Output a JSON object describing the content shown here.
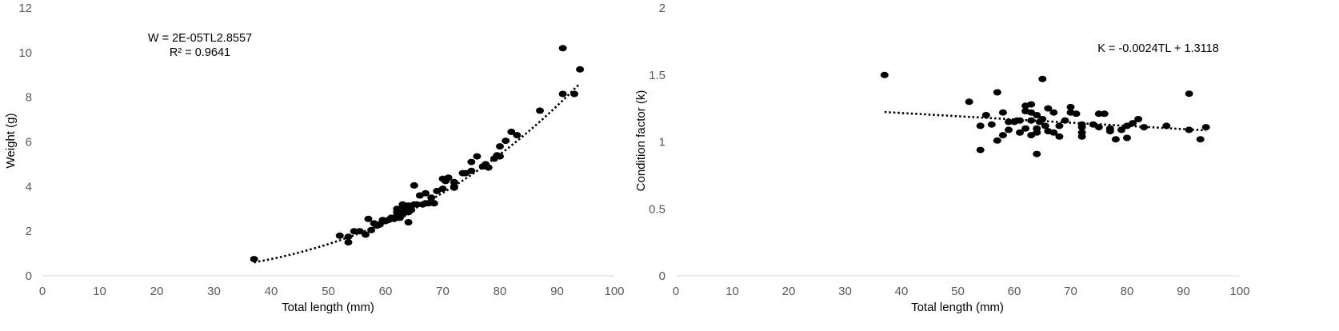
{
  "chart_data": [
    {
      "type": "scatter",
      "xlabel": "Total length (mm)",
      "ylabel": "Weight (g)",
      "xlim": [
        0,
        100
      ],
      "ylim": [
        0,
        12
      ],
      "xticks": [
        0,
        10,
        20,
        30,
        40,
        50,
        60,
        70,
        80,
        90,
        100
      ],
      "yticks": [
        0,
        2,
        4,
        6,
        8,
        10,
        12
      ],
      "grid": false,
      "annotations": [
        "W = 2E-05TL2.8557",
        "R² = 0.9641"
      ],
      "trendline": {
        "type": "power",
        "a": 2e-05,
        "b": 2.8557,
        "x_range": [
          37,
          94
        ],
        "style": "dotted"
      },
      "points": [
        [
          37,
          0.75
        ],
        [
          52,
          1.8
        ],
        [
          53.5,
          1.5
        ],
        [
          53.5,
          1.75
        ],
        [
          54.5,
          2.0
        ],
        [
          55.5,
          2.0
        ],
        [
          56.5,
          1.85
        ],
        [
          57,
          2.55
        ],
        [
          57.5,
          2.05
        ],
        [
          58,
          2.35
        ],
        [
          58.5,
          2.25
        ],
        [
          59,
          2.3
        ],
        [
          59.5,
          2.5
        ],
        [
          60,
          2.45
        ],
        [
          60.5,
          2.5
        ],
        [
          61,
          2.6
        ],
        [
          61.5,
          2.55
        ],
        [
          62,
          2.7
        ],
        [
          62,
          3.0
        ],
        [
          62,
          2.85
        ],
        [
          62.5,
          2.6
        ],
        [
          62.5,
          2.9
        ],
        [
          63,
          3.2
        ],
        [
          63,
          2.75
        ],
        [
          63,
          3.05
        ],
        [
          63.5,
          2.9
        ],
        [
          63.5,
          3.1
        ],
        [
          64,
          2.85
        ],
        [
          64,
          3.15
        ],
        [
          64,
          2.4
        ],
        [
          64.5,
          2.95
        ],
        [
          65,
          3.2
        ],
        [
          65,
          4.05
        ],
        [
          65.5,
          3.2
        ],
        [
          66,
          3.6
        ],
        [
          66.5,
          3.2
        ],
        [
          67,
          3.7
        ],
        [
          67,
          3.25
        ],
        [
          67.5,
          3.25
        ],
        [
          68,
          3.5
        ],
        [
          68.5,
          3.25
        ],
        [
          69,
          3.8
        ],
        [
          70,
          3.9
        ],
        [
          70,
          4.35
        ],
        [
          70.5,
          4.25
        ],
        [
          71,
          4.4
        ],
        [
          72,
          4.0
        ],
        [
          72,
          4.2
        ],
        [
          72,
          3.95
        ],
        [
          73.5,
          4.6
        ],
        [
          74,
          4.6
        ],
        [
          75,
          4.7
        ],
        [
          75,
          5.1
        ],
        [
          76,
          5.35
        ],
        [
          77,
          4.9
        ],
        [
          77.5,
          5.0
        ],
        [
          78,
          4.85
        ],
        [
          79,
          5.25
        ],
        [
          79.5,
          5.4
        ],
        [
          80,
          5.35
        ],
        [
          80,
          5.8
        ],
        [
          81,
          6.05
        ],
        [
          82,
          6.45
        ],
        [
          83,
          6.3
        ],
        [
          87,
          7.4
        ],
        [
          91,
          10.2
        ],
        [
          91,
          8.15
        ],
        [
          93,
          8.15
        ],
        [
          94,
          9.25
        ]
      ]
    },
    {
      "type": "scatter",
      "xlabel": "Total length (mm)",
      "ylabel": "Condition factor (k)",
      "xlim": [
        0,
        100
      ],
      "ylim": [
        0,
        2
      ],
      "xticks": [
        0,
        10,
        20,
        30,
        40,
        50,
        60,
        70,
        80,
        90,
        100
      ],
      "yticks": [
        0,
        0.5,
        1,
        1.5,
        2
      ],
      "grid": false,
      "annotations": [
        "K = -0.0024TL + 1.3118"
      ],
      "trendline": {
        "type": "linear",
        "slope": -0.0024,
        "intercept": 1.3118,
        "x_range": [
          37,
          94
        ],
        "style": "dotted"
      },
      "points": [
        [
          37,
          1.5
        ],
        [
          52,
          1.3
        ],
        [
          54,
          1.12
        ],
        [
          54,
          0.94
        ],
        [
          55,
          1.2
        ],
        [
          56,
          1.13
        ],
        [
          57,
          1.37
        ],
        [
          57,
          1.01
        ],
        [
          58,
          1.22
        ],
        [
          58,
          1.05
        ],
        [
          59,
          1.09
        ],
        [
          59,
          1.15
        ],
        [
          60,
          1.15
        ],
        [
          60.5,
          1.16
        ],
        [
          61,
          1.16
        ],
        [
          61,
          1.07
        ],
        [
          62,
          1.27
        ],
        [
          62,
          1.23
        ],
        [
          62,
          1.1
        ],
        [
          63,
          1.28
        ],
        [
          63,
          1.22
        ],
        [
          63,
          1.16
        ],
        [
          63,
          1.05
        ],
        [
          64,
          1.2
        ],
        [
          64,
          1.1
        ],
        [
          64,
          1.07
        ],
        [
          64,
          0.91
        ],
        [
          64.5,
          1.15
        ],
        [
          65,
          1.47
        ],
        [
          65,
          1.17
        ],
        [
          65.5,
          1.12
        ],
        [
          66,
          1.25
        ],
        [
          66,
          1.08
        ],
        [
          67,
          1.22
        ],
        [
          67,
          1.07
        ],
        [
          68,
          1.12
        ],
        [
          68,
          1.04
        ],
        [
          69,
          1.16
        ],
        [
          70,
          1.26
        ],
        [
          70,
          1.22
        ],
        [
          71,
          1.21
        ],
        [
          72,
          1.13
        ],
        [
          72,
          1.11
        ],
        [
          72,
          1.07
        ],
        [
          72,
          1.04
        ],
        [
          74,
          1.13
        ],
        [
          75,
          1.21
        ],
        [
          75,
          1.11
        ],
        [
          76,
          1.21
        ],
        [
          77,
          1.1
        ],
        [
          77,
          1.08
        ],
        [
          78,
          1.02
        ],
        [
          79,
          1.09
        ],
        [
          80,
          1.12
        ],
        [
          80,
          1.03
        ],
        [
          81,
          1.14
        ],
        [
          82,
          1.17
        ],
        [
          83,
          1.11
        ],
        [
          87,
          1.12
        ],
        [
          91,
          1.36
        ],
        [
          91,
          1.09
        ],
        [
          93,
          1.02
        ],
        [
          94,
          1.11
        ]
      ]
    }
  ]
}
